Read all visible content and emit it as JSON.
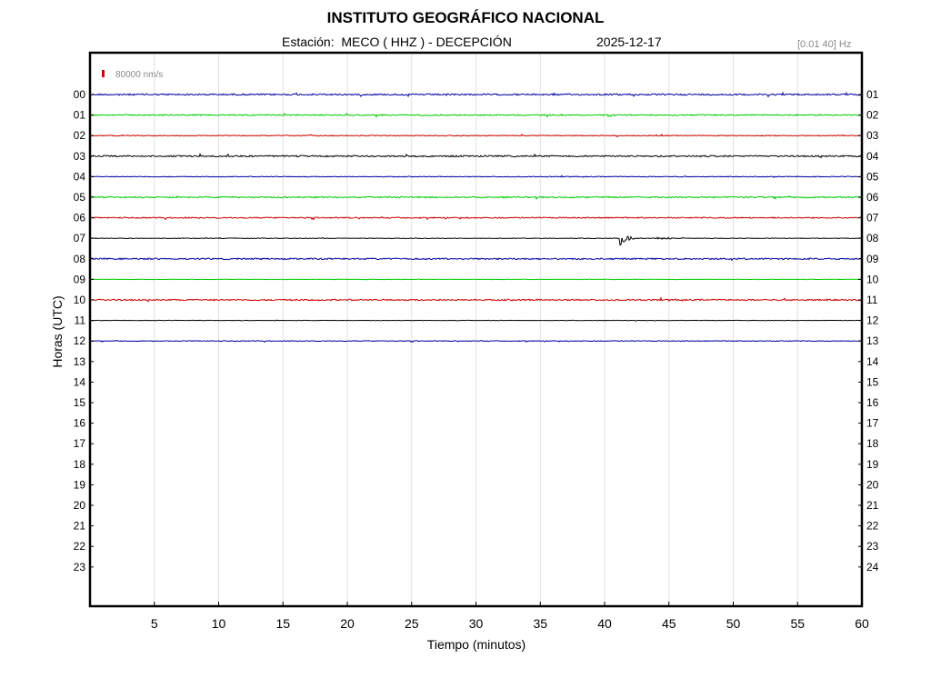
{
  "header": {
    "title": "INSTITUTO GEOGRÁFICO NACIONAL",
    "station": "Estación:  MECO ( HHZ ) - DECEPCIÓN",
    "date": "2025-12-17",
    "filter": "[0.01 40] Hz"
  },
  "chart_data": {
    "type": "line",
    "subtype": "helicorder",
    "xlabel": "Tiempo (minutos)",
    "ylabel": "Horas (UTC)",
    "xlim": [
      0,
      60
    ],
    "x_ticks": [
      5,
      10,
      15,
      20,
      25,
      30,
      35,
      40,
      45,
      50,
      55,
      60
    ],
    "left_hour_labels": [
      "00",
      "01",
      "02",
      "03",
      "04",
      "05",
      "06",
      "07",
      "08",
      "09",
      "10",
      "11",
      "12",
      "13",
      "14",
      "15",
      "16",
      "17",
      "18",
      "19",
      "20",
      "21",
      "22",
      "23"
    ],
    "right_hour_labels": [
      "01",
      "02",
      "03",
      "04",
      "05",
      "06",
      "07",
      "08",
      "09",
      "10",
      "11",
      "12",
      "13",
      "14",
      "15",
      "16",
      "17",
      "18",
      "19",
      "20",
      "21",
      "22",
      "23",
      "24"
    ],
    "scale_bar": {
      "value": "80000 nm/s",
      "color": "#d40000"
    },
    "grid": "vertical",
    "trace_colors": [
      "#0000a0",
      "#00cc00",
      "#cc0000",
      "#000000"
    ],
    "traces": [
      {
        "hour": "00",
        "color": "#0000a0",
        "noise": 1.0
      },
      {
        "hour": "01",
        "color": "#00cc00",
        "noise": 0.8
      },
      {
        "hour": "02",
        "color": "#cc0000",
        "noise": 0.6
      },
      {
        "hour": "03",
        "color": "#000000",
        "noise": 1.0
      },
      {
        "hour": "04",
        "color": "#0000a0",
        "noise": 0.5
      },
      {
        "hour": "05",
        "color": "#00cc00",
        "noise": 0.9
      },
      {
        "hour": "06",
        "color": "#cc0000",
        "noise": 0.8
      },
      {
        "hour": "07",
        "color": "#000000",
        "noise": 0.4,
        "event": {
          "minute": 41.2,
          "amplitude": 12
        }
      },
      {
        "hour": "08",
        "color": "#0000a0",
        "noise": 1.0
      },
      {
        "hour": "09",
        "color": "#00cc00",
        "noise": 0.3
      },
      {
        "hour": "10",
        "color": "#cc0000",
        "noise": 1.0
      },
      {
        "hour": "11",
        "color": "#000000",
        "noise": 0.3
      },
      {
        "hour": "12",
        "color": "#0000a0",
        "noise": 0.5,
        "end_minute": 60
      }
    ]
  }
}
